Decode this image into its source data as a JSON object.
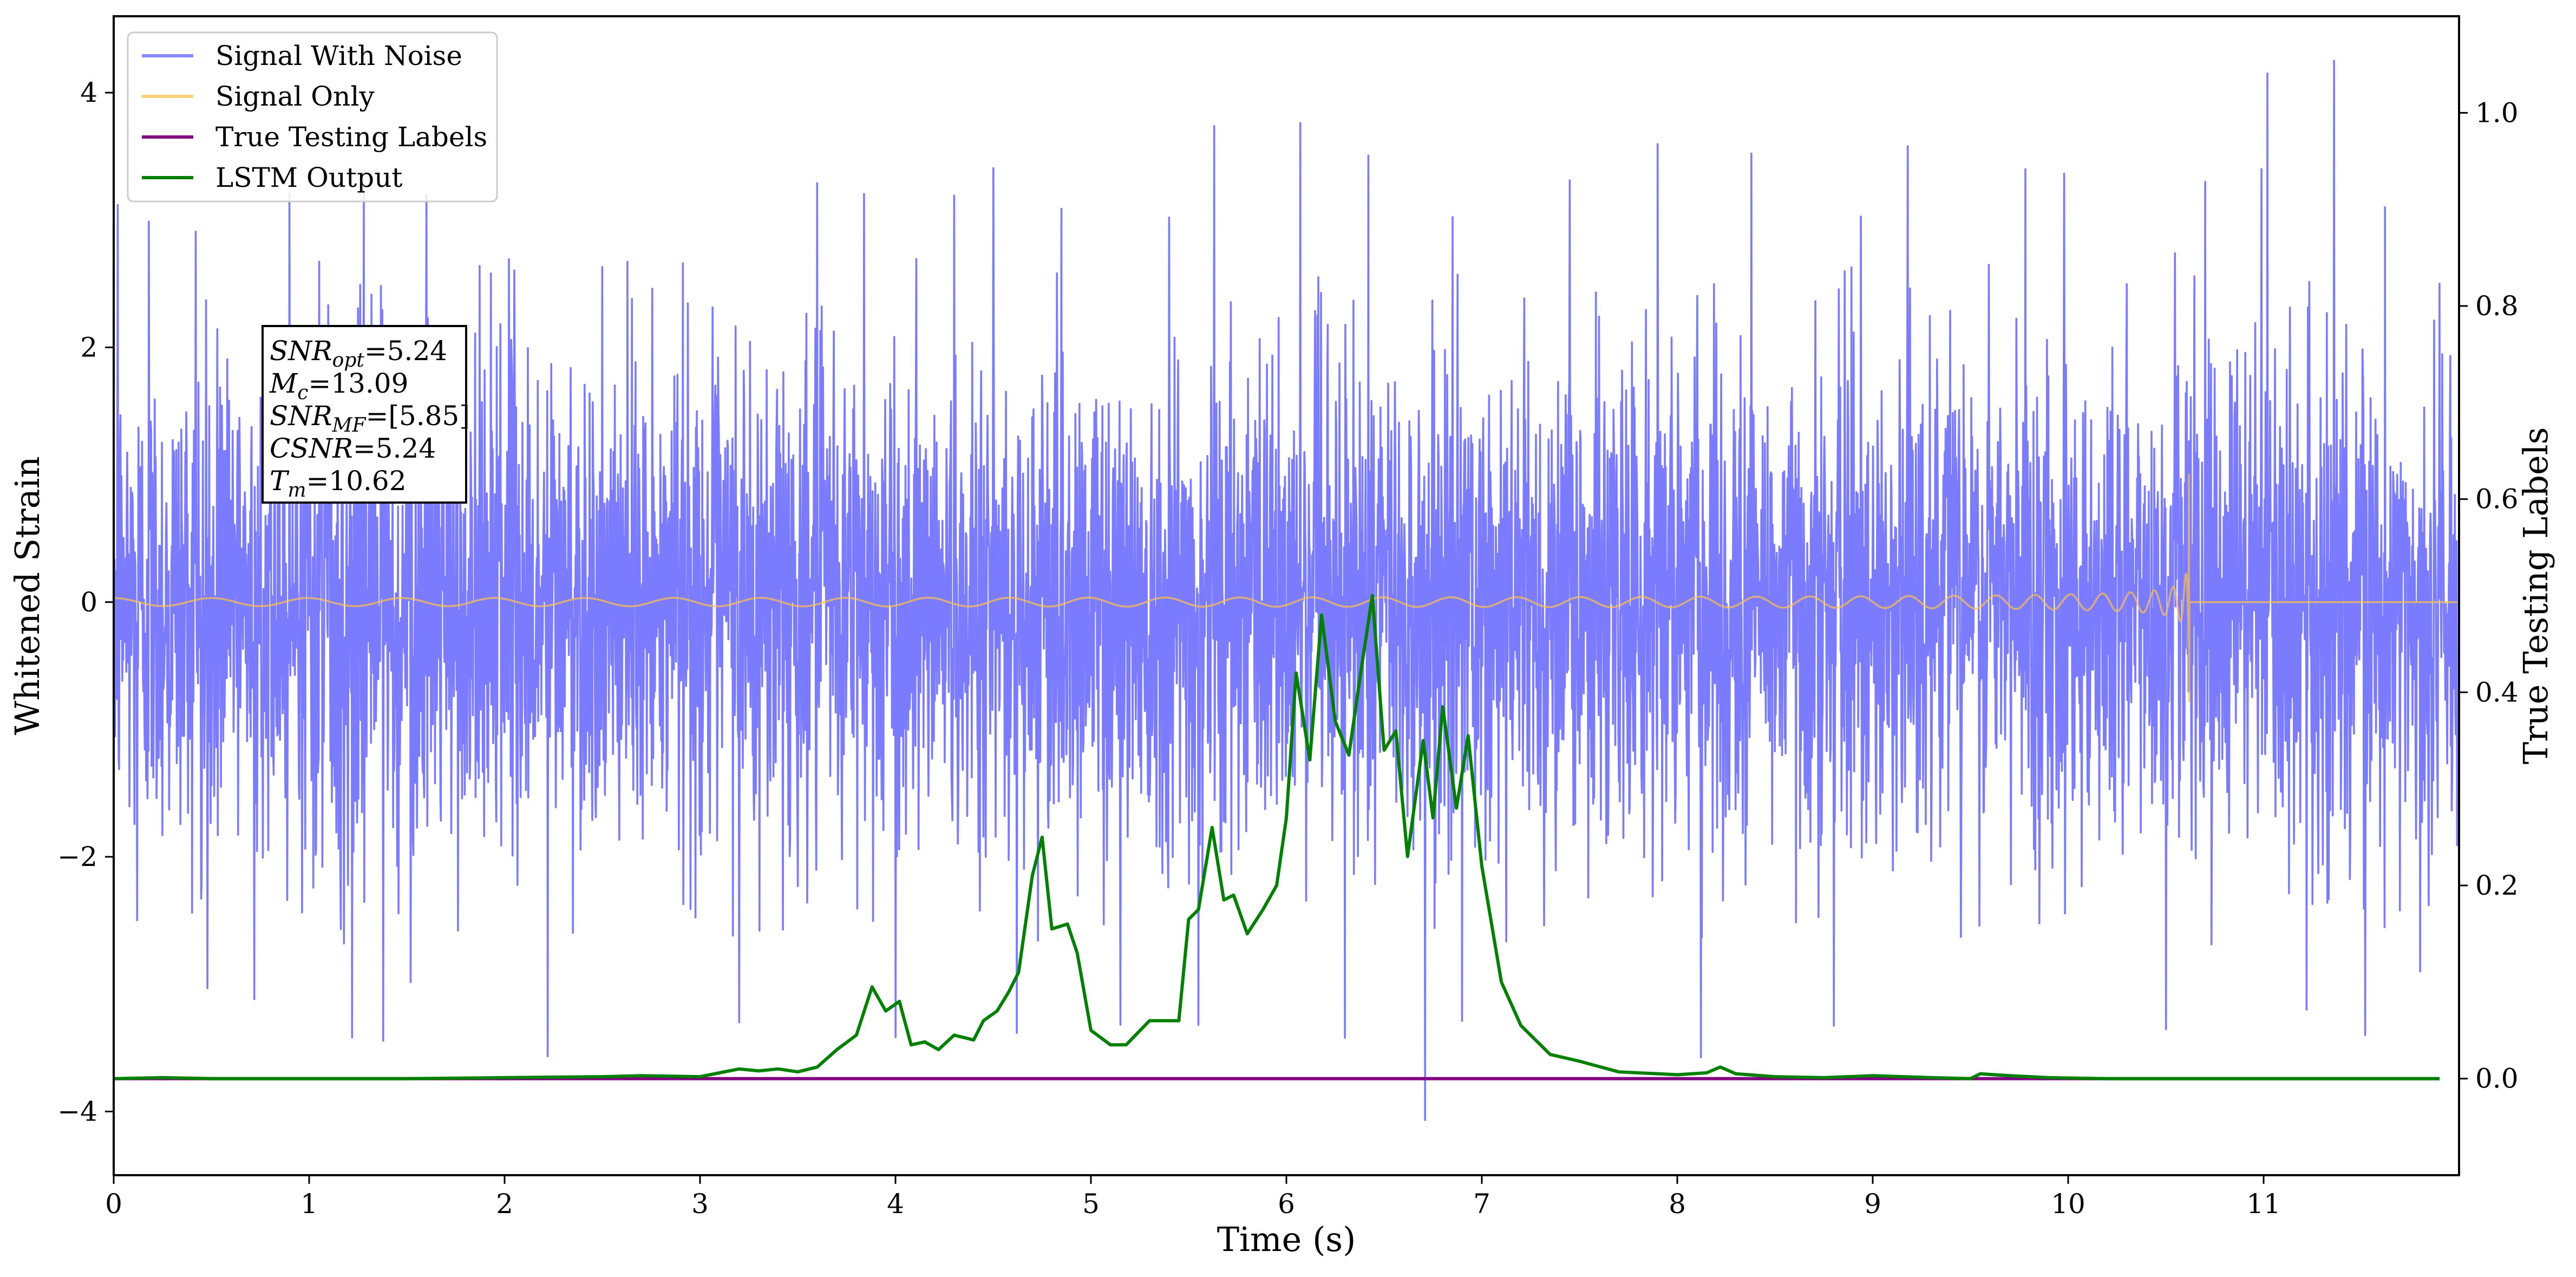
{
  "chart_data": {
    "type": "line",
    "xlabel": "Time (s)",
    "ylabel": "Whitened Strain",
    "y2label": "True Testing Labels",
    "xlim": [
      0,
      12
    ],
    "ylim": [
      -4.5,
      4.6
    ],
    "y2lim": [
      -0.1,
      1.1
    ],
    "x_ticks": [
      0,
      1,
      2,
      3,
      4,
      5,
      6,
      7,
      8,
      9,
      10,
      11
    ],
    "y_ticks": [
      -4,
      -2,
      0,
      2,
      4
    ],
    "y_tick_labels": [
      "−4",
      "−2",
      "0",
      "2",
      "4"
    ],
    "y2_ticks": [
      0.0,
      0.2,
      0.4,
      0.6,
      0.8,
      1.0
    ],
    "y2_tick_labels": [
      "0.0",
      "0.2",
      "0.4",
      "0.6",
      "0.8",
      "1.0"
    ],
    "grid": false,
    "legend_position": "top-left",
    "series": [
      {
        "name": "Signal With Noise",
        "axis": "left",
        "color": "#7b7bff",
        "kind": "noise",
        "amplitude_std": 1.0,
        "extremes": [
          {
            "x": 0.02,
            "y": 3.1
          },
          {
            "x": 0.12,
            "y": -2.5
          },
          {
            "x": 0.18,
            "y": 3.0
          },
          {
            "x": 0.42,
            "y": 2.9
          },
          {
            "x": 0.48,
            "y": -3.05
          },
          {
            "x": 0.72,
            "y": -3.1
          },
          {
            "x": 0.9,
            "y": 3.2
          },
          {
            "x": 1.22,
            "y": -3.4
          },
          {
            "x": 1.28,
            "y": 3.3
          },
          {
            "x": 1.38,
            "y": -3.45
          },
          {
            "x": 1.6,
            "y": 3.2
          },
          {
            "x": 1.52,
            "y": -3.0
          },
          {
            "x": 2.22,
            "y": -3.55
          },
          {
            "x": 2.05,
            "y": 2.6
          },
          {
            "x": 3.2,
            "y": -3.3
          },
          {
            "x": 3.6,
            "y": 3.3
          },
          {
            "x": 3.84,
            "y": 3.2
          },
          {
            "x": 4.0,
            "y": -3.4
          },
          {
            "x": 4.3,
            "y": 3.2
          },
          {
            "x": 4.5,
            "y": 3.4
          },
          {
            "x": 4.62,
            "y": -3.4
          },
          {
            "x": 4.85,
            "y": 3.1
          },
          {
            "x": 5.15,
            "y": -3.3
          },
          {
            "x": 5.4,
            "y": 3.0
          },
          {
            "x": 5.55,
            "y": -3.3
          },
          {
            "x": 5.63,
            "y": 3.75
          },
          {
            "x": 6.07,
            "y": 3.75
          },
          {
            "x": 6.3,
            "y": -3.4
          },
          {
            "x": 6.42,
            "y": 3.5
          },
          {
            "x": 6.71,
            "y": -4.05
          },
          {
            "x": 6.9,
            "y": -3.3
          },
          {
            "x": 6.85,
            "y": 3.0
          },
          {
            "x": 7.45,
            "y": 3.3
          },
          {
            "x": 7.9,
            "y": 3.6
          },
          {
            "x": 8.12,
            "y": -3.6
          },
          {
            "x": 8.38,
            "y": 3.5
          },
          {
            "x": 8.8,
            "y": -3.3
          },
          {
            "x": 8.94,
            "y": 3.0
          },
          {
            "x": 9.18,
            "y": 3.55
          },
          {
            "x": 9.78,
            "y": 3.4
          },
          {
            "x": 9.98,
            "y": 3.35
          },
          {
            "x": 10.5,
            "y": -3.3
          },
          {
            "x": 10.7,
            "y": 3.3
          },
          {
            "x": 10.99,
            "y": 3.4
          },
          {
            "x": 11.02,
            "y": 4.15
          },
          {
            "x": 11.22,
            "y": -3.2
          },
          {
            "x": 11.36,
            "y": 4.25
          },
          {
            "x": 11.52,
            "y": -3.4
          },
          {
            "x": 11.62,
            "y": 3.1
          },
          {
            "x": 11.8,
            "y": -2.9
          },
          {
            "x": 11.9,
            "y": 2.5
          }
        ]
      },
      {
        "name": "Signal Only",
        "axis": "left",
        "color": "#ffc04d",
        "kind": "chirp",
        "merger_time": 10.62,
        "start_amplitude": 0.02,
        "peak_amplitude": 1.0,
        "peak_negative": -0.78
      },
      {
        "name": "True Testing Labels",
        "axis": "right",
        "color": "#800080",
        "x": [
          0.0,
          11.9
        ],
        "y": [
          0.0,
          0.0
        ]
      },
      {
        "name": "LSTM Output",
        "axis": "right",
        "color": "#008000",
        "x": [
          0.0,
          0.25,
          0.5,
          1.0,
          1.5,
          2.0,
          2.5,
          2.7,
          3.0,
          3.1,
          3.2,
          3.3,
          3.4,
          3.5,
          3.6,
          3.7,
          3.8,
          3.88,
          3.95,
          4.02,
          4.08,
          4.15,
          4.22,
          4.3,
          4.4,
          4.45,
          4.52,
          4.58,
          4.63,
          4.7,
          4.75,
          4.8,
          4.88,
          4.93,
          5.0,
          5.1,
          5.18,
          5.3,
          5.38,
          5.45,
          5.5,
          5.55,
          5.62,
          5.68,
          5.73,
          5.8,
          5.88,
          5.95,
          6.0,
          6.05,
          6.12,
          6.18,
          6.25,
          6.32,
          6.38,
          6.44,
          6.5,
          6.56,
          6.62,
          6.7,
          6.75,
          6.8,
          6.87,
          6.93,
          7.0,
          7.1,
          7.2,
          7.35,
          7.5,
          7.7,
          8.0,
          8.15,
          8.22,
          8.3,
          8.5,
          8.75,
          9.0,
          9.3,
          9.5,
          9.55,
          9.7,
          9.9,
          10.2,
          10.5,
          11.0,
          11.5,
          11.9
        ],
        "y": [
          0.0,
          0.001,
          0.0,
          0.0,
          0.0,
          0.001,
          0.002,
          0.003,
          0.002,
          0.006,
          0.01,
          0.008,
          0.01,
          0.007,
          0.012,
          0.03,
          0.045,
          0.095,
          0.07,
          0.08,
          0.035,
          0.038,
          0.03,
          0.045,
          0.04,
          0.06,
          0.07,
          0.09,
          0.11,
          0.21,
          0.25,
          0.155,
          0.16,
          0.13,
          0.05,
          0.035,
          0.035,
          0.06,
          0.06,
          0.06,
          0.165,
          0.175,
          0.26,
          0.185,
          0.19,
          0.15,
          0.175,
          0.2,
          0.27,
          0.42,
          0.33,
          0.48,
          0.37,
          0.335,
          0.42,
          0.5,
          0.34,
          0.36,
          0.23,
          0.35,
          0.27,
          0.385,
          0.28,
          0.355,
          0.22,
          0.1,
          0.055,
          0.025,
          0.018,
          0.007,
          0.004,
          0.006,
          0.012,
          0.005,
          0.002,
          0.001,
          0.003,
          0.001,
          0.0,
          0.005,
          0.003,
          0.001,
          0.0,
          0.0,
          0.0,
          0.0,
          0.0
        ]
      }
    ],
    "annotation": {
      "lines": [
        {
          "base": "SNR",
          "sub": "opt",
          "value": "=5.24"
        },
        {
          "base": "M",
          "sub": "c",
          "value": "=13.09"
        },
        {
          "base": "SNR",
          "sub": "MF",
          "value": "=[5.85]"
        },
        {
          "base": "CSNR",
          "sub": "",
          "value": "=5.24"
        },
        {
          "base": "T",
          "sub": "m",
          "value": "=10.62"
        }
      ]
    }
  }
}
